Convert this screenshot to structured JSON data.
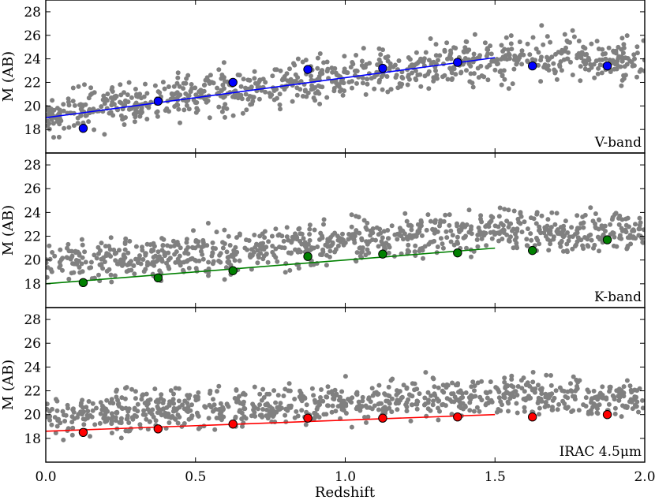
{
  "chart_data": [
    {
      "type": "scatter",
      "panel_label": "V-band",
      "ylabel": "M (AB)",
      "xlim": [
        0.0,
        2.0
      ],
      "ylim": [
        16.0,
        29.0
      ],
      "yticks": [
        "18",
        "20",
        "22",
        "24",
        "26",
        "28"
      ],
      "series": [
        {
          "color": "#808080",
          "band": {
            "base": 19.3,
            "slope": 3.2,
            "spread": 1.35,
            "n": 850
          }
        },
        {
          "color": "#0000ff",
          "x": [
            0.125,
            0.375,
            0.625,
            0.875,
            1.125,
            1.375,
            1.625,
            1.875
          ],
          "y": [
            18.1,
            20.4,
            22.0,
            23.1,
            23.2,
            23.7,
            23.4,
            23.4
          ]
        }
      ],
      "fit_line": {
        "color": "#0000ff",
        "x": [
          0.0,
          1.5
        ],
        "y": [
          19.0,
          24.1
        ]
      }
    },
    {
      "type": "scatter",
      "panel_label": "K-band",
      "ylabel": "M (AB)",
      "xlim": [
        0.0,
        2.0
      ],
      "ylim": [
        16.0,
        29.0
      ],
      "yticks": [
        "18",
        "20",
        "22",
        "24",
        "26",
        "28"
      ],
      "series": [
        {
          "color": "#808080",
          "band": {
            "base": 19.6,
            "slope": 1.9,
            "spread": 1.25,
            "n": 850
          }
        },
        {
          "color": "#008000",
          "x": [
            0.125,
            0.375,
            0.625,
            0.875,
            1.125,
            1.375,
            1.625,
            1.875
          ],
          "y": [
            18.1,
            18.5,
            19.1,
            20.3,
            20.5,
            20.6,
            20.8,
            21.7
          ]
        }
      ],
      "fit_line": {
        "color": "#008000",
        "x": [
          0.0,
          1.5
        ],
        "y": [
          18.0,
          21.0
        ]
      }
    },
    {
      "type": "scatter",
      "panel_label": "IRAC 4.5μm",
      "ylabel": "M (AB)",
      "xlabel": "Redshift",
      "xlim": [
        0.0,
        2.0
      ],
      "ylim": [
        16.0,
        29.0
      ],
      "yticks": [
        "18",
        "20",
        "22",
        "24",
        "26",
        "28"
      ],
      "xticks": [
        "0.0",
        "0.5",
        "1.0",
        "1.5",
        "2.0"
      ],
      "series": [
        {
          "color": "#808080",
          "band": {
            "base": 19.8,
            "slope": 1.2,
            "spread": 1.15,
            "n": 850
          }
        },
        {
          "color": "#ff0000",
          "x": [
            0.125,
            0.375,
            0.625,
            0.875,
            1.125,
            1.375,
            1.625,
            1.875
          ],
          "y": [
            18.5,
            18.8,
            19.2,
            19.7,
            19.7,
            19.8,
            19.8,
            20.0
          ]
        }
      ],
      "fit_line": {
        "color": "#ff0000",
        "x": [
          0.0,
          1.5
        ],
        "y": [
          18.6,
          20.0
        ]
      }
    }
  ]
}
